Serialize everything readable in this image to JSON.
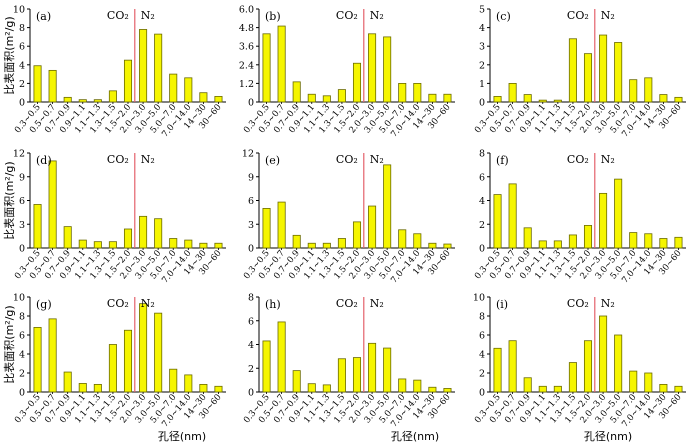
{
  "figure": {
    "ylabel": "比表面积(m²/g)",
    "xlabel": "孔径(nm)",
    "gas_labels": [
      "CO₂",
      "N₂"
    ],
    "categories": [
      "0.3~0.5",
      "0.5~0.7",
      "0.7~0.9",
      "0.9~1.1",
      "1.1~1.3",
      "1.3~1.5",
      "1.5~2.0",
      "2.0~3.0",
      "3.0~5.0",
      "5.0~7.0",
      "7.0~14.0",
      "14~30",
      "30~60"
    ],
    "colors": {
      "bar_fill": "#f5f500",
      "bar_stroke": "#6a6a00",
      "divider": "#e4606a",
      "axis": "#000000"
    }
  },
  "chart_data": [
    {
      "panel": "(a)",
      "type": "bar",
      "ylim": [
        0,
        10
      ],
      "yticks": [
        "0",
        "2",
        "4",
        "6",
        "8",
        "10"
      ],
      "values": [
        3.9,
        3.4,
        0.5,
        0.25,
        0.25,
        1.2,
        4.5,
        7.8,
        7.3,
        3.0,
        2.6,
        1.0,
        0.6
      ]
    },
    {
      "panel": "(b)",
      "type": "bar",
      "ylim": [
        0,
        6
      ],
      "yticks": [
        "0",
        "1.2",
        "2.4",
        "3.6",
        "4.8",
        "6.0"
      ],
      "values": [
        4.4,
        4.9,
        1.3,
        0.5,
        0.4,
        0.8,
        2.5,
        4.4,
        4.2,
        1.2,
        1.2,
        0.5,
        0.5
      ]
    },
    {
      "panel": "(c)",
      "type": "bar",
      "ylim": [
        0,
        5
      ],
      "yticks": [
        "0",
        "1",
        "2",
        "3",
        "4",
        "5"
      ],
      "values": [
        0.3,
        1.0,
        0.4,
        0.1,
        0.1,
        3.4,
        2.6,
        3.6,
        3.2,
        1.2,
        1.3,
        0.4,
        0.25
      ]
    },
    {
      "panel": "(d)",
      "type": "bar",
      "ylim": [
        0,
        12
      ],
      "yticks": [
        "0",
        "3",
        "6",
        "9",
        "12"
      ],
      "values": [
        5.5,
        11.0,
        2.7,
        1.0,
        0.8,
        0.8,
        2.4,
        4.0,
        3.7,
        1.2,
        1.0,
        0.6,
        0.6
      ]
    },
    {
      "panel": "(e)",
      "type": "bar",
      "ylim": [
        0,
        12
      ],
      "yticks": [
        "0",
        "3",
        "6",
        "9",
        "12"
      ],
      "values": [
        5.0,
        5.8,
        1.6,
        0.6,
        0.6,
        1.2,
        3.3,
        5.3,
        10.5,
        2.3,
        1.8,
        0.6,
        0.5
      ]
    },
    {
      "panel": "(f)",
      "type": "bar",
      "ylim": [
        0,
        8
      ],
      "yticks": [
        "0",
        "2",
        "4",
        "6",
        "8"
      ],
      "values": [
        4.5,
        5.4,
        1.7,
        0.6,
        0.6,
        1.1,
        1.9,
        4.6,
        5.8,
        1.3,
        1.2,
        0.8,
        0.9
      ]
    },
    {
      "panel": "(g)",
      "type": "bar",
      "ylim": [
        0,
        10
      ],
      "yticks": [
        "0",
        "2",
        "4",
        "6",
        "8",
        "10"
      ],
      "values": [
        6.8,
        7.7,
        2.1,
        0.9,
        0.8,
        5.0,
        6.5,
        9.3,
        8.3,
        2.4,
        1.8,
        0.8,
        0.6
      ]
    },
    {
      "panel": "(h)",
      "type": "bar",
      "ylim": [
        0,
        8
      ],
      "yticks": [
        "0",
        "2",
        "4",
        "6",
        "8"
      ],
      "values": [
        4.3,
        5.9,
        1.8,
        0.7,
        0.6,
        2.8,
        2.9,
        4.1,
        3.7,
        1.1,
        1.0,
        0.4,
        0.3
      ]
    },
    {
      "panel": "(i)",
      "type": "bar",
      "ylim": [
        0,
        10
      ],
      "yticks": [
        "0",
        "2",
        "4",
        "6",
        "8",
        "10"
      ],
      "values": [
        4.6,
        5.4,
        1.5,
        0.6,
        0.6,
        3.1,
        5.4,
        8.0,
        6.0,
        2.2,
        2.0,
        0.8,
        0.6
      ]
    }
  ]
}
